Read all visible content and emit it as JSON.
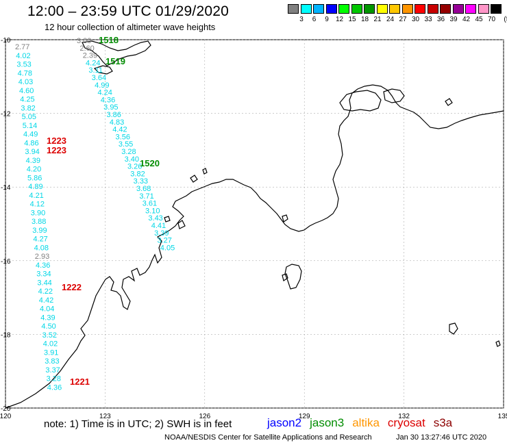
{
  "title": "12:00  –  23:59 UTC 01/29/2020",
  "subtitle": "12 hour collection of altimeter wave heights",
  "colorbar": {
    "unit": "(ft)",
    "bins": [
      {
        "label": "3",
        "color": "#808080"
      },
      {
        "label": "6",
        "color": "#00ffff"
      },
      {
        "label": "9",
        "color": "#00b4ff"
      },
      {
        "label": "12",
        "color": "#0000ff"
      },
      {
        "label": "15",
        "color": "#00ff00"
      },
      {
        "label": "18",
        "color": "#00c800"
      },
      {
        "label": "21",
        "color": "#009600"
      },
      {
        "label": "24",
        "color": "#ffff00"
      },
      {
        "label": "27",
        "color": "#ffc800"
      },
      {
        "label": "30",
        "color": "#ff9600"
      },
      {
        "label": "33",
        "color": "#ff0000"
      },
      {
        "label": "36",
        "color": "#c80000"
      },
      {
        "label": "39",
        "color": "#960000"
      },
      {
        "label": "42",
        "color": "#960096"
      },
      {
        "label": "45",
        "color": "#ff00ff"
      },
      {
        "label": "70",
        "color": "#ff96c8"
      },
      {
        "label": "",
        "color": "#000000"
      }
    ]
  },
  "map": {
    "lon_ticks": [
      "120",
      "123",
      "126",
      "129",
      "132",
      "135"
    ],
    "lat_ticks": [
      "-10",
      "-12",
      "-14",
      "-16",
      "-18",
      "-20"
    ],
    "lon_range": [
      120,
      135
    ],
    "lat_range": [
      -20,
      -10
    ]
  },
  "tracks": {
    "west": {
      "values": [
        "2.77",
        "4.02",
        "3.53",
        "4.78",
        "4.03",
        "4.60",
        "4.25",
        "3.82",
        "5.05",
        "5.14",
        "4.49",
        "4.86",
        "3.94",
        "4.39",
        "4.20",
        "5.86",
        "4.89",
        "4.21",
        "4.12",
        "3.90",
        "3.88",
        "3.99",
        "4.27",
        "4.08",
        "2.93",
        "4.36",
        "3.34",
        "3.44",
        "4.22",
        "4.42",
        "4.04",
        "4.39",
        "4.50",
        "3.52",
        "4.02",
        "3.91",
        "3.83",
        "3.37",
        "3.28",
        "4.36"
      ],
      "colors": [
        "gray",
        "cyan",
        "cyan",
        "cyan",
        "cyan",
        "cyan",
        "cyan",
        "cyan",
        "cyan",
        "cyan",
        "cyan",
        "cyan",
        "cyan",
        "cyan",
        "cyan",
        "cyan",
        "cyan",
        "cyan",
        "cyan",
        "cyan",
        "cyan",
        "cyan",
        "cyan",
        "cyan",
        "gray",
        "cyan",
        "cyan",
        "cyan",
        "cyan",
        "cyan",
        "cyan",
        "cyan",
        "cyan",
        "cyan",
        "cyan",
        "cyan",
        "cyan",
        "cyan",
        "cyan",
        "cyan"
      ],
      "time_tags": [
        {
          "text": "1223",
          "satellite": "cryosat"
        },
        {
          "text": "1223",
          "satellite": "cryosat"
        },
        {
          "text": "1222",
          "satellite": "cryosat"
        },
        {
          "text": "1221",
          "satellite": "cryosat"
        }
      ]
    },
    "east": {
      "values": [
        "3.00",
        "2.60",
        "2.39",
        "4.24",
        "3.11",
        "3.64",
        "4.99",
        "4.24",
        "4.36",
        "3.95",
        "3.86",
        "4.83",
        "4.42",
        "3.56",
        "3.55",
        "3.28",
        "3.40",
        "3.26",
        "3.82",
        "3.33",
        "3.68",
        "3.71",
        "3.61",
        "3.10",
        "3.43",
        "4.41",
        "3.39",
        "3.27",
        "4.05"
      ],
      "colors": [
        "gray",
        "gray",
        "gray",
        "cyan",
        "cyan",
        "cyan",
        "cyan",
        "cyan",
        "cyan",
        "cyan",
        "cyan",
        "cyan",
        "cyan",
        "cyan",
        "cyan",
        "cyan",
        "cyan",
        "cyan",
        "cyan",
        "cyan",
        "cyan",
        "cyan",
        "cyan",
        "cyan",
        "cyan",
        "cyan",
        "cyan",
        "cyan",
        "cyan"
      ],
      "time_tags": [
        {
          "text": "1518",
          "satellite": "jason3"
        },
        {
          "text": "1519",
          "satellite": "jason3"
        },
        {
          "text": "1520",
          "satellite": "jason3"
        }
      ]
    }
  },
  "satellites": [
    {
      "name": "jason2",
      "color": "#0000ff"
    },
    {
      "name": "jason3",
      "color": "#008c00"
    },
    {
      "name": "altika",
      "color": "#ff9600"
    },
    {
      "name": "cryosat",
      "color": "#dc0000"
    },
    {
      "name": "s3a",
      "color": "#8c0000"
    }
  ],
  "value_colors": {
    "cyan": "#00d7e6",
    "gray": "#7f7f7f"
  },
  "note": "note:  1) Time is in UTC;  2) SWH is in feet",
  "credit": "NOAA/NESDIS Center for Satellite Applications and Research",
  "timestamp": "Jan 30 13:27:46 UTC 2020"
}
